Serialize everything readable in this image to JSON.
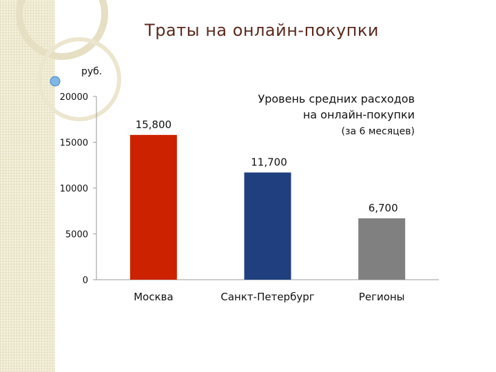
{
  "title": "Траты на онлайн-покупки",
  "chart_data": {
    "type": "bar",
    "unit_label": "руб.",
    "categories": [
      "Москва",
      "Санкт-Петербург",
      "Регионы"
    ],
    "values": [
      15800,
      11700,
      6700
    ],
    "data_labels": [
      "15,800",
      "11,700",
      "6,700"
    ],
    "colors": [
      "#cc2200",
      "#1f3f7f",
      "#808080"
    ],
    "ylim": [
      0,
      20000
    ],
    "yticks": [
      0,
      5000,
      10000,
      15000,
      20000
    ],
    "ytick_labels": [
      "0",
      "5000",
      "10000",
      "15000",
      "20000"
    ],
    "annotation_lines": [
      "Уровень средних расходов",
      "на онлайн-покупки"
    ],
    "annotation_sub": "(за 6 месяцев)",
    "grid": false,
    "legend": "none"
  }
}
